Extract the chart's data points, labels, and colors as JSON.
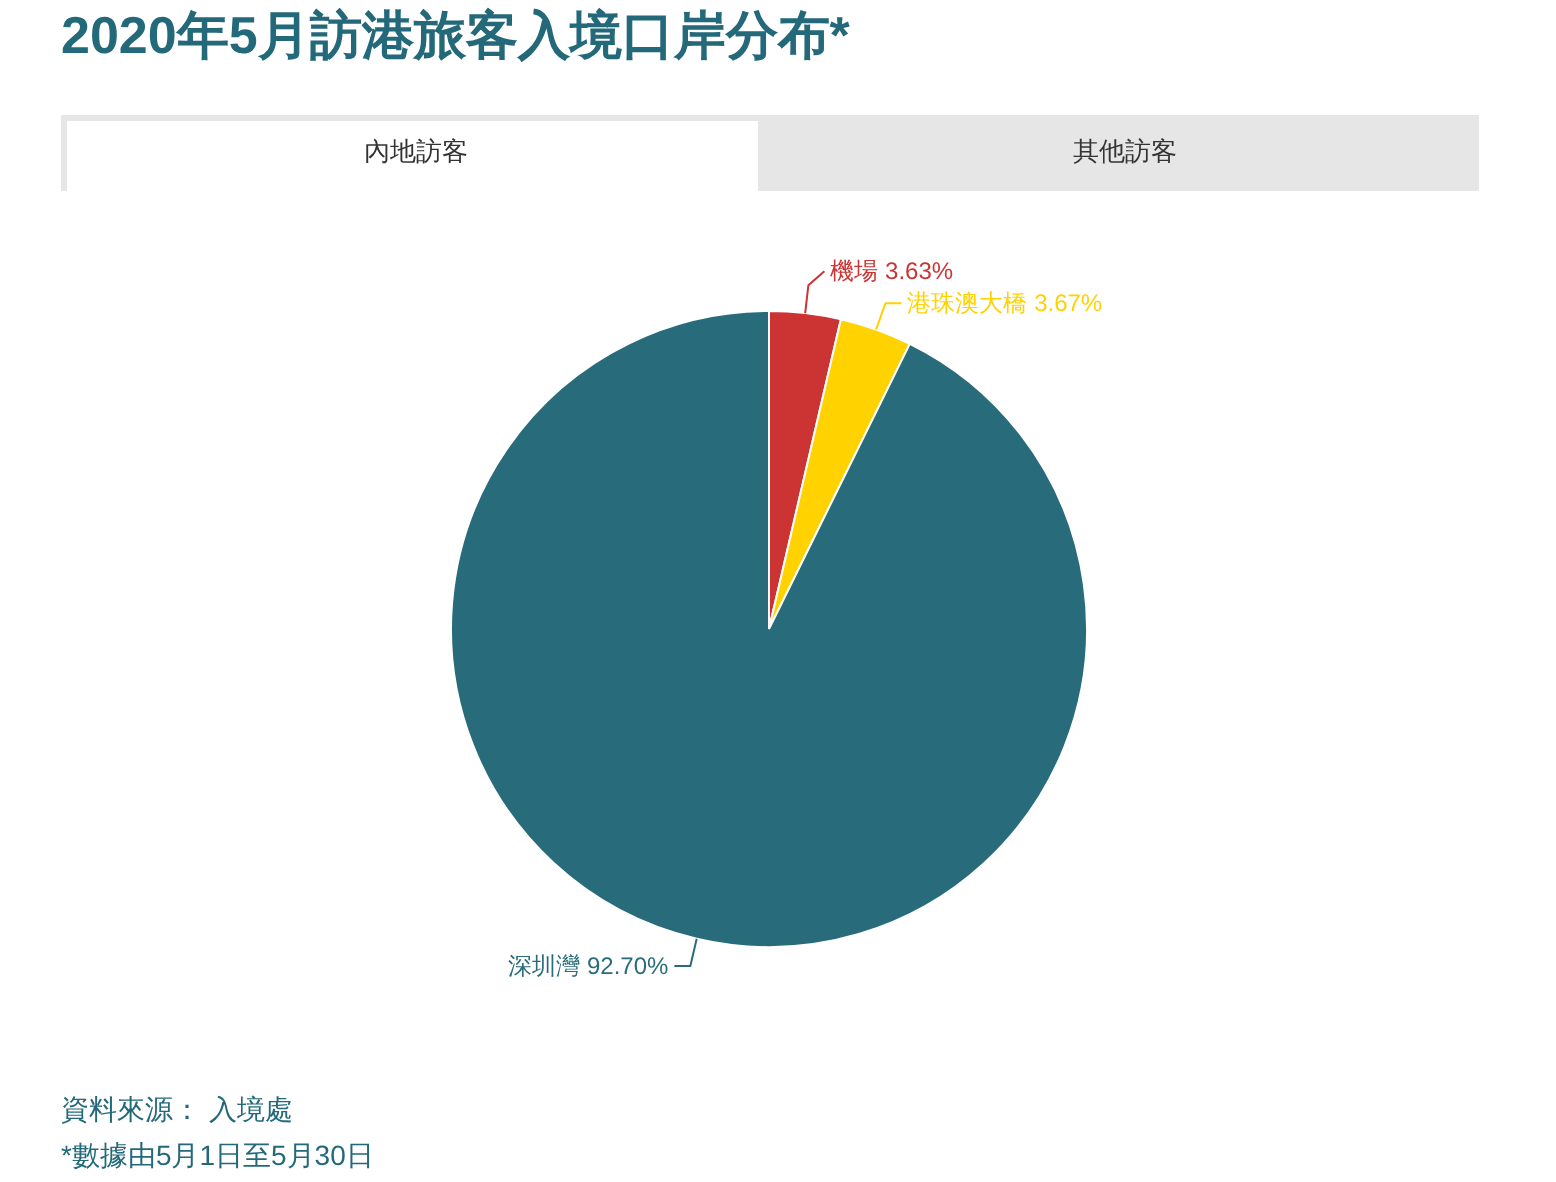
{
  "chart_data": {
    "type": "pie",
    "title": "2020年5月訪港旅客入境口岸分布*",
    "categories": [
      "機場",
      "港珠澳大橋",
      "深圳灣"
    ],
    "values": [
      3.63,
      3.67,
      92.7
    ],
    "value_labels": [
      "3.63%",
      "3.67%",
      "92.70%"
    ],
    "colors": [
      "#cc3333",
      "#ffd200",
      "#286c7b"
    ],
    "annotations": [
      "內地訪客",
      "其他訪客",
      "資料來源： 入境處",
      "*數據由5月1日至5月30日"
    ]
  }
}
